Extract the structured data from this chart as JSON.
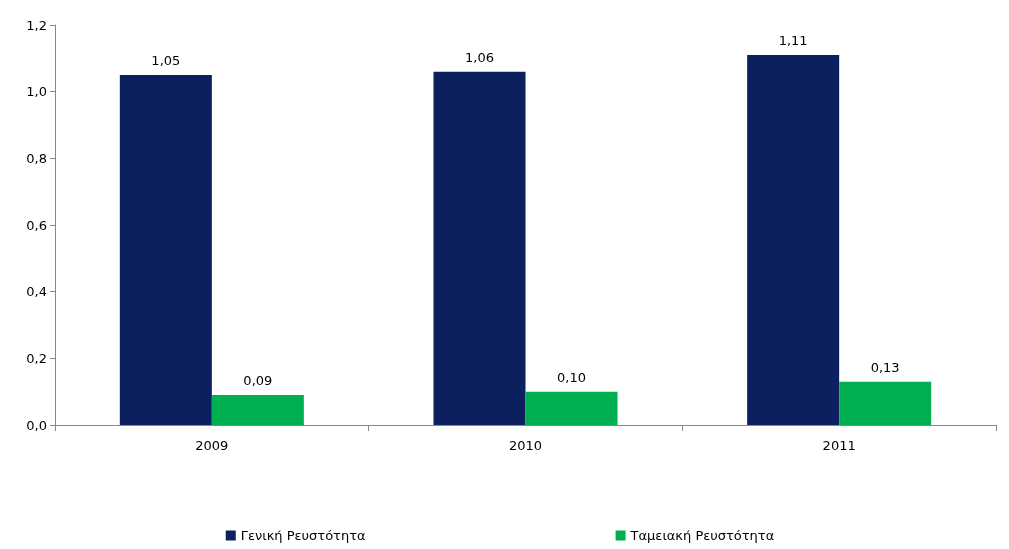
{
  "chart_data": {
    "type": "bar",
    "categories": [
      "2009",
      "2010",
      "2011"
    ],
    "series": [
      {
        "name": "Γενική Ρευστότητα",
        "color": "#0c1f5e",
        "values": [
          1.05,
          1.06,
          1.11
        ],
        "value_labels": [
          "1,05",
          "1,06",
          "1,11"
        ]
      },
      {
        "name": "Ταμειακή Ρευστότητα",
        "color": "#00b050",
        "values": [
          0.09,
          0.1,
          0.13
        ],
        "value_labels": [
          "0,09",
          "0,10",
          "0,13"
        ]
      }
    ],
    "ylim": [
      0,
      1.2
    ],
    "yticks": [
      {
        "value": 0,
        "label": "0,0"
      },
      {
        "value": 0.2,
        "label": "0,2"
      },
      {
        "value": 0.4,
        "label": "0,4"
      },
      {
        "value": 0.6,
        "label": "0,6"
      },
      {
        "value": 0.8,
        "label": "0,8"
      },
      {
        "value": 1.0,
        "label": "1,0"
      },
      {
        "value": 1.2,
        "label": "1,2"
      }
    ],
    "grid": false,
    "legend": "bottom"
  }
}
